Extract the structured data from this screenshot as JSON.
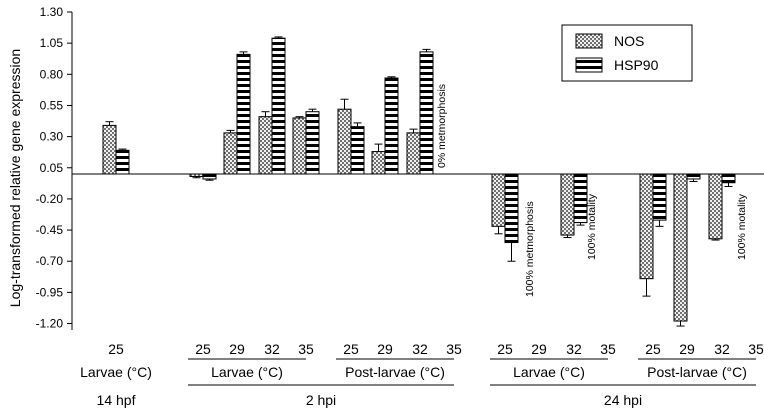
{
  "chart_data": {
    "type": "bar",
    "ylabel": "Log-transformed relative gene expression",
    "ylim": [
      -1.3,
      1.3
    ],
    "yticks": [
      "1.30",
      "1.05",
      "0.80",
      "0.55",
      "0.30",
      "0.05",
      "-0.20",
      "-0.45",
      "-0.70",
      "-0.95",
      "-1.20"
    ],
    "grid": false,
    "legend_position": "top-right",
    "series": [
      {
        "name": "NOS",
        "pattern": "checker",
        "values": [
          0.39,
          -0.02,
          0.33,
          0.46,
          0.45,
          0.52,
          0.18,
          0.33,
          -0.42,
          -0.49,
          -0.84,
          -1.18,
          -0.52
        ]
      },
      {
        "name": "HSP90",
        "pattern": "horizontal-stripes",
        "values": [
          0.19,
          -0.04,
          0.96,
          1.09,
          0.5,
          0.38,
          0.77,
          0.98,
          -0.55,
          -0.39,
          -0.37,
          -0.04,
          -0.07
        ]
      }
    ],
    "errors": {
      "NOS": [
        0.03,
        0.01,
        0.02,
        0.04,
        0.01,
        0.08,
        0.06,
        0.03,
        0.06,
        0.02,
        0.14,
        0.04,
        0.01
      ],
      "HSP90": [
        0.01,
        0.01,
        0.02,
        0.01,
        0.02,
        0.03,
        0.01,
        0.02,
        0.15,
        0.02,
        0.05,
        0.02,
        0.03
      ]
    },
    "temperatures": [
      "25",
      "25",
      "29",
      "32",
      "35",
      "25",
      "29",
      "32",
      "35",
      "25",
      "29",
      "32",
      "35",
      "25",
      "29",
      "32",
      "35"
    ],
    "stage_labels": [
      "Larvae (°C)",
      "Larvae (°C)",
      "Post-larvae (°C)",
      "Larvae (°C)",
      "Post-larvae (°C)"
    ],
    "time_labels": [
      "14 hpf",
      "2 hpi",
      "24 hpi"
    ],
    "annotations": [
      "0% metmorphosis",
      "100% metmorphosis",
      "100% motality",
      "100% motality"
    ]
  }
}
